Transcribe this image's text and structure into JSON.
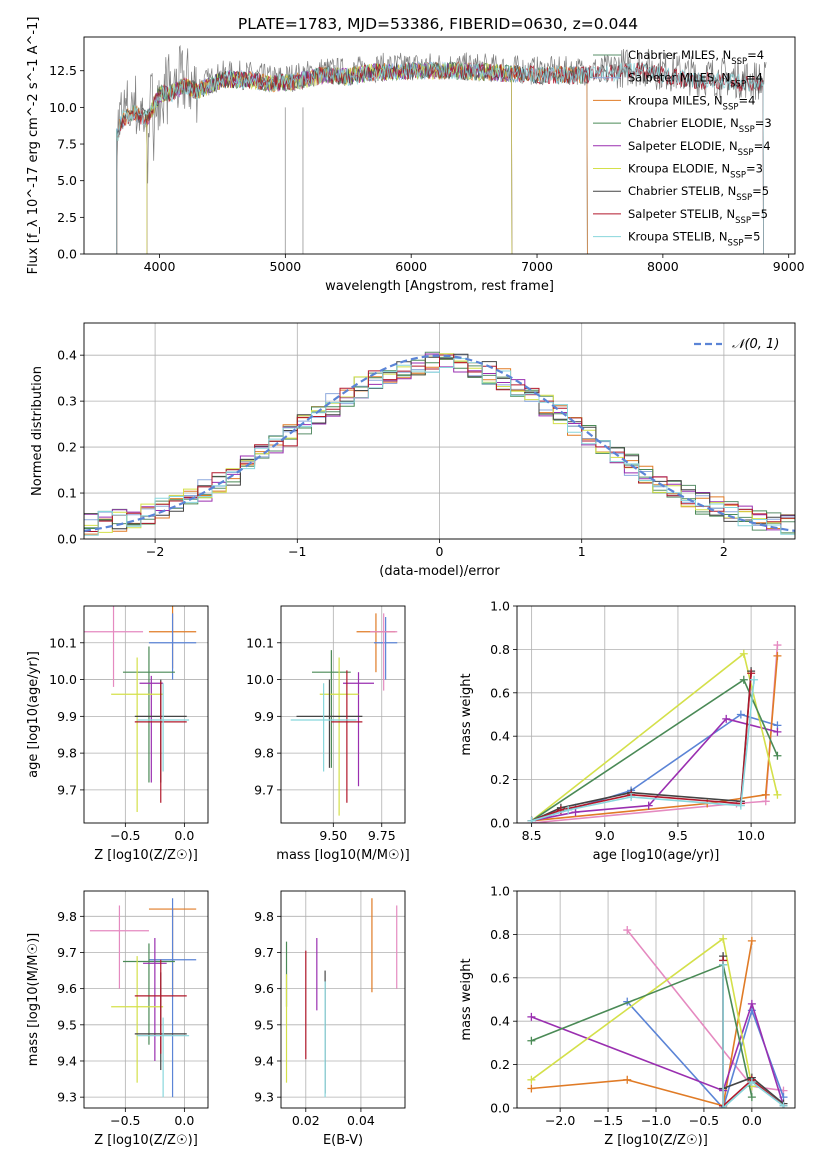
{
  "figure": {
    "title": "PLATE=1783, MJD=53386, FIBERID=0630, z=0.044"
  },
  "chart_data": [
    {
      "id": "spectrum",
      "type": "line",
      "xlabel": "wavelength [Angstrom, rest frame]",
      "ylabel": "Flux [f_λ 10^-17 erg cm^-2 s^-1 A^-1]",
      "xlim": [
        3400,
        9050
      ],
      "ylim": [
        0,
        14.8
      ],
      "xticks": [
        "4000",
        "5000",
        "6000",
        "7000",
        "8000",
        "9000"
      ],
      "yticks": [
        "0.0",
        "2.5",
        "5.0",
        "7.5",
        "10.0",
        "12.5"
      ],
      "legend_position": "right",
      "series": [
        {
          "name": "Chabrier MILES, N_SSP=4",
          "color": "#5a8f6a"
        },
        {
          "name": "Salpeter MILES, N_SSP=4",
          "color": "#8ea9dd"
        },
        {
          "name": "Kroupa MILES, N_SSP=4",
          "color": "#e07b26"
        },
        {
          "name": "Chabrier ELODIE, N_SSP=3",
          "color": "#4a8a56"
        },
        {
          "name": "Salpeter ELODIE, N_SSP=4",
          "color": "#9a2fb0"
        },
        {
          "name": "Kroupa ELODIE, N_SSP=3",
          "color": "#d4e04a"
        },
        {
          "name": "Chabrier STELIB, N_SSP=5",
          "color": "#444444"
        },
        {
          "name": "Salpeter STELIB, N_SSP=5",
          "color": "#b2182b"
        },
        {
          "name": "Kroupa STELIB, N_SSP=5",
          "color": "#88d6dc"
        }
      ],
      "observed_color": "#808080",
      "continuum": {
        "x": [
          3650,
          3700,
          3800,
          3900,
          4000,
          4100,
          4200,
          4300,
          4500,
          4700,
          4900,
          5100,
          5300,
          5500,
          5700,
          6000,
          6300,
          6600,
          7000,
          7400,
          7800,
          8200,
          8600,
          8800
        ],
        "y": [
          8,
          9.5,
          10,
          9.5,
          11.2,
          11.3,
          11.8,
          11.4,
          12.2,
          12.2,
          11.9,
          12.1,
          12.5,
          12.4,
          12.7,
          12.8,
          12.8,
          12.7,
          12.5,
          12.5,
          12.8,
          12.2,
          12.0,
          11.8
        ]
      },
      "end_wavelength": {
        "miles": 7400,
        "elodie": 6800,
        "stelib": 8800
      }
    },
    {
      "id": "residuals",
      "type": "histogram",
      "xlabel": "(data-model)/error",
      "ylabel": "Normed distribution",
      "xlim": [
        -2.5,
        2.5
      ],
      "ylim": [
        0,
        0.47
      ],
      "xticks": [
        "-2",
        "-1",
        "0",
        "1",
        "2"
      ],
      "yticks": [
        "0.0",
        "0.1",
        "0.2",
        "0.3",
        "0.4"
      ],
      "grid": true,
      "legend": "𝒩(0, 1)",
      "legend_position": "top-right",
      "normal_curve_color": "#5b84d6"
    },
    {
      "id": "age-vs-Z",
      "type": "errorbar",
      "xlabel": "Z [log10(Z/Z☉)]",
      "ylabel": "age [log10(age/yr)]",
      "xlim": [
        -0.85,
        0.2
      ],
      "ylim": [
        9.61,
        10.2
      ],
      "xticks": [
        "-0.5",
        "0.0"
      ],
      "yticks": [
        "9.7",
        "9.8",
        "9.9",
        "10.0",
        "10.1"
      ],
      "points": [
        {
          "x": -0.1,
          "y": 10.13,
          "xerr": 0.2,
          "yerr": [
            0.1,
            0.08
          ],
          "c": "#e07b26"
        },
        {
          "x": -0.1,
          "y": 10.1,
          "xerr": 0.2,
          "yerr": [
            0.1,
            0.08
          ],
          "c": "#5b84d6"
        },
        {
          "x": -0.6,
          "y": 10.13,
          "xerr": 0.25,
          "yerr": [
            0.15,
            0.07
          ],
          "c": "#e58ac0"
        },
        {
          "x": -0.3,
          "y": 10.02,
          "xerr": 0.22,
          "yerr": [
            0.3,
            0.07
          ],
          "c": "#4a8a56"
        },
        {
          "x": -0.28,
          "y": 9.99,
          "xerr": 0.1,
          "yerr": [
            0.27,
            0.02
          ],
          "c": "#9a2fb0"
        },
        {
          "x": -0.4,
          "y": 9.96,
          "xerr": 0.22,
          "yerr": [
            0.32,
            0.1
          ],
          "c": "#d4e04a"
        },
        {
          "x": -0.2,
          "y": 9.9,
          "xerr": 0.22,
          "yerr": [
            0.18,
            0.1
          ],
          "c": "#444444"
        },
        {
          "x": -0.2,
          "y": 9.885,
          "xerr": 0.22,
          "yerr": [
            0.22,
            0.11
          ],
          "c": "#b2182b"
        },
        {
          "x": -0.18,
          "y": 9.89,
          "xerr": 0.22,
          "yerr": [
            0.14,
            0.1
          ],
          "c": "#88d6dc"
        }
      ]
    },
    {
      "id": "age-vs-mass",
      "type": "errorbar",
      "xlabel": "mass [log10(M/M☉)]",
      "ylabel": "",
      "xlim": [
        9.23,
        9.87
      ],
      "ylim": [
        9.61,
        10.2
      ],
      "xticks": [
        "9.50",
        "9.75"
      ],
      "yticks": [
        "9.7",
        "9.8",
        "9.9",
        "10.0",
        "10.1"
      ],
      "points": [
        {
          "x": 9.72,
          "y": 10.13,
          "xerr": 0.1,
          "yerr": [
            0.11,
            0.05
          ],
          "c": "#e07b26"
        },
        {
          "x": 9.77,
          "y": 10.1,
          "xerr": 0.06,
          "yerr": [
            0.1,
            0.07
          ],
          "c": "#5b84d6"
        },
        {
          "x": 9.76,
          "y": 10.13,
          "xerr": 0.07,
          "yerr": [
            0.16,
            0.05
          ],
          "c": "#e58ac0"
        },
        {
          "x": 9.49,
          "y": 10.02,
          "xerr": 0.1,
          "yerr": [
            0.26,
            0.06
          ],
          "c": "#4a8a56"
        },
        {
          "x": 9.63,
          "y": 9.99,
          "xerr": 0.08,
          "yerr": [
            0.28,
            0.03
          ],
          "c": "#9a2fb0"
        },
        {
          "x": 9.53,
          "y": 9.96,
          "xerr": 0.1,
          "yerr": [
            0.33,
            0.1
          ],
          "c": "#d4e04a"
        },
        {
          "x": 9.48,
          "y": 9.9,
          "xerr": 0.17,
          "yerr": [
            0.14,
            0.1
          ],
          "c": "#444444"
        },
        {
          "x": 9.57,
          "y": 9.885,
          "xerr": 0.08,
          "yerr": [
            0.22,
            0.14
          ],
          "c": "#b2182b"
        },
        {
          "x": 9.45,
          "y": 9.89,
          "xerr": 0.17,
          "yerr": [
            0.14,
            0.1
          ],
          "c": "#88d6dc"
        }
      ]
    },
    {
      "id": "massweight-vs-age",
      "type": "line",
      "xlabel": "age [log10(age/yr)]",
      "ylabel": "mass weight",
      "xlim": [
        8.4,
        10.3
      ],
      "ylim": [
        0,
        1.0
      ],
      "xticks": [
        "8.5",
        "9.0",
        "9.5",
        "10.0"
      ],
      "yticks": [
        "0.0",
        "0.2",
        "0.4",
        "0.6",
        "0.8",
        "1.0"
      ],
      "grid": true,
      "series": [
        {
          "c": "#5b84d6",
          "x": [
            8.5,
            8.8,
            9.18,
            9.93,
            10.18
          ],
          "y": [
            0.01,
            0.07,
            0.15,
            0.5,
            0.45
          ]
        },
        {
          "c": "#e58ac0",
          "x": [
            8.5,
            9.9,
            10.1,
            10.18
          ],
          "y": [
            0.0,
            0.09,
            0.1,
            0.82
          ]
        },
        {
          "c": "#e07b26",
          "x": [
            8.5,
            9.7,
            10.1,
            10.18
          ],
          "y": [
            0.01,
            0.09,
            0.13,
            0.77
          ]
        },
        {
          "c": "#9a2fb0",
          "x": [
            8.5,
            8.8,
            9.3,
            9.83,
            10.18
          ],
          "y": [
            0.01,
            0.05,
            0.08,
            0.48,
            0.42
          ]
        },
        {
          "c": "#d4e04a",
          "x": [
            8.5,
            9.95,
            10.18
          ],
          "y": [
            0.01,
            0.78,
            0.13
          ]
        },
        {
          "c": "#4a8a56",
          "x": [
            8.5,
            9.95,
            10.18
          ],
          "y": [
            0.01,
            0.66,
            0.31
          ]
        },
        {
          "c": "#444444",
          "x": [
            8.5,
            8.7,
            9.18,
            9.93,
            10.0
          ],
          "y": [
            0.01,
            0.07,
            0.14,
            0.1,
            0.7
          ]
        },
        {
          "c": "#b2182b",
          "x": [
            8.5,
            8.7,
            9.18,
            9.93,
            10.0
          ],
          "y": [
            0.01,
            0.06,
            0.13,
            0.09,
            0.69
          ]
        },
        {
          "c": "#88d6dc",
          "x": [
            8.5,
            8.75,
            9.18,
            9.93,
            10.02
          ],
          "y": [
            0.01,
            0.06,
            0.12,
            0.08,
            0.66
          ]
        }
      ]
    },
    {
      "id": "mass-vs-Z",
      "type": "errorbar",
      "xlabel": "Z [log10(Z/Z☉)]",
      "ylabel": "mass [log10(M/M☉)]",
      "xlim": [
        -0.85,
        0.2
      ],
      "ylim": [
        9.27,
        9.87
      ],
      "xticks": [
        "-0.5",
        "0.0"
      ],
      "yticks": [
        "9.3",
        "9.4",
        "9.5",
        "9.6",
        "9.7",
        "9.8"
      ],
      "points": [
        {
          "x": -0.1,
          "y": 9.82,
          "xerr": 0.2,
          "yerr": [
            0.24,
            0.0
          ],
          "c": "#e07b26"
        },
        {
          "x": -0.1,
          "y": 9.68,
          "xerr": 0.2,
          "yerr": [
            0.38,
            0.17
          ],
          "c": "#5b84d6"
        },
        {
          "x": -0.55,
          "y": 9.76,
          "xerr": 0.25,
          "yerr": [
            0.16,
            0.07
          ],
          "c": "#e58ac0"
        },
        {
          "x": -0.3,
          "y": 9.675,
          "xerr": 0.22,
          "yerr": [
            0.23,
            0.05
          ],
          "c": "#4a8a56"
        },
        {
          "x": -0.25,
          "y": 9.67,
          "xerr": 0.1,
          "yerr": [
            0.27,
            0.07
          ],
          "c": "#9a2fb0"
        },
        {
          "x": -0.4,
          "y": 9.55,
          "xerr": 0.22,
          "yerr": [
            0.21,
            0.14
          ],
          "c": "#d4e04a"
        },
        {
          "x": -0.2,
          "y": 9.475,
          "xerr": 0.22,
          "yerr": [
            0.1,
            0.17
          ],
          "c": "#444444"
        },
        {
          "x": -0.2,
          "y": 9.58,
          "xerr": 0.22,
          "yerr": [
            0.16,
            0.1
          ],
          "c": "#b2182b"
        },
        {
          "x": -0.18,
          "y": 9.47,
          "xerr": 0.22,
          "yerr": [
            0.17,
            0.05
          ],
          "c": "#88d6dc"
        }
      ]
    },
    {
      "id": "mass-vs-EBV",
      "type": "errorbar",
      "xlabel": "E(B-V)",
      "ylabel": "",
      "xlim": [
        0.011,
        0.056
      ],
      "ylim": [
        9.27,
        9.87
      ],
      "xticks": [
        "0.02",
        "0.04"
      ],
      "yticks": [
        "9.3",
        "9.4",
        "9.5",
        "9.6",
        "9.7",
        "9.8"
      ],
      "points": [
        {
          "x": 0.044,
          "y": 9.72,
          "yerr": [
            0.13,
            0.13
          ],
          "c": "#e07b26"
        },
        {
          "x": 0.053,
          "y": 9.72,
          "yerr": [
            0.12,
            0.11
          ],
          "c": "#e58ac0"
        },
        {
          "x": 0.013,
          "y": 9.64,
          "yerr": [
            0.09,
            0.09
          ],
          "c": "#4a8a56"
        },
        {
          "x": 0.024,
          "y": 9.64,
          "yerr": [
            0.1,
            0.1
          ],
          "c": "#9a2fb0"
        },
        {
          "x": 0.013,
          "y": 9.49,
          "yerr": [
            0.15,
            0.15
          ],
          "c": "#d4e04a"
        },
        {
          "x": 0.027,
          "y": 9.48,
          "yerr": [
            0.17,
            0.17
          ],
          "c": "#444444"
        },
        {
          "x": 0.02,
          "y": 9.555,
          "yerr": [
            0.15,
            0.15
          ],
          "c": "#b2182b"
        },
        {
          "x": 0.027,
          "y": 9.46,
          "yerr": [
            0.16,
            0.16
          ],
          "c": "#88d6dc"
        }
      ]
    },
    {
      "id": "massweight-vs-Z",
      "type": "line",
      "xlabel": "Z [log10(Z/Z☉)]",
      "ylabel": "mass weight",
      "xlim": [
        -2.45,
        0.45
      ],
      "ylim": [
        0,
        1.0
      ],
      "xticks": [
        "-2.0",
        "-1.5",
        "-1.0",
        "-0.5",
        "0.0"
      ],
      "yticks": [
        "0.0",
        "0.2",
        "0.4",
        "0.6",
        "0.8",
        "1.0"
      ],
      "grid": true,
      "series": [
        {
          "c": "#e58ac0",
          "x": [
            -1.3,
            0,
            0.33
          ],
          "y": [
            0.82,
            0.1,
            0.08
          ]
        },
        {
          "c": "#5b84d6",
          "x": [
            -1.3,
            -0.3,
            0,
            0.33
          ],
          "y": [
            0.49,
            0.0,
            0.45,
            0.05
          ]
        },
        {
          "c": "#e07b26",
          "x": [
            -2.3,
            -1.3,
            -0.3,
            0
          ],
          "y": [
            0.09,
            0.13,
            0.01,
            0.77
          ]
        },
        {
          "c": "#9a2fb0",
          "x": [
            -2.3,
            -0.3,
            0,
            0.33
          ],
          "y": [
            0.42,
            0.08,
            0.48,
            0.01
          ]
        },
        {
          "c": "#d4e04a",
          "x": [
            -2.3,
            -0.3,
            0
          ],
          "y": [
            0.13,
            0.78,
            0.1
          ]
        },
        {
          "c": "#4a8a56",
          "x": [
            -2.3,
            -0.3,
            0
          ],
          "y": [
            0.31,
            0.66,
            0.05
          ]
        },
        {
          "c": "#444444",
          "x": [
            -0.3,
            -0.3,
            0,
            0.33
          ],
          "y": [
            0.7,
            0.09,
            0.14,
            0.02
          ]
        },
        {
          "c": "#b2182b",
          "x": [
            -0.3,
            -0.3,
            0,
            0.33
          ],
          "y": [
            0.68,
            0.01,
            0.13,
            0.01
          ]
        },
        {
          "c": "#88d6dc",
          "x": [
            -0.3,
            -0.3,
            0,
            0.33
          ],
          "y": [
            0.66,
            0.0,
            0.12,
            0.01
          ]
        }
      ]
    }
  ]
}
